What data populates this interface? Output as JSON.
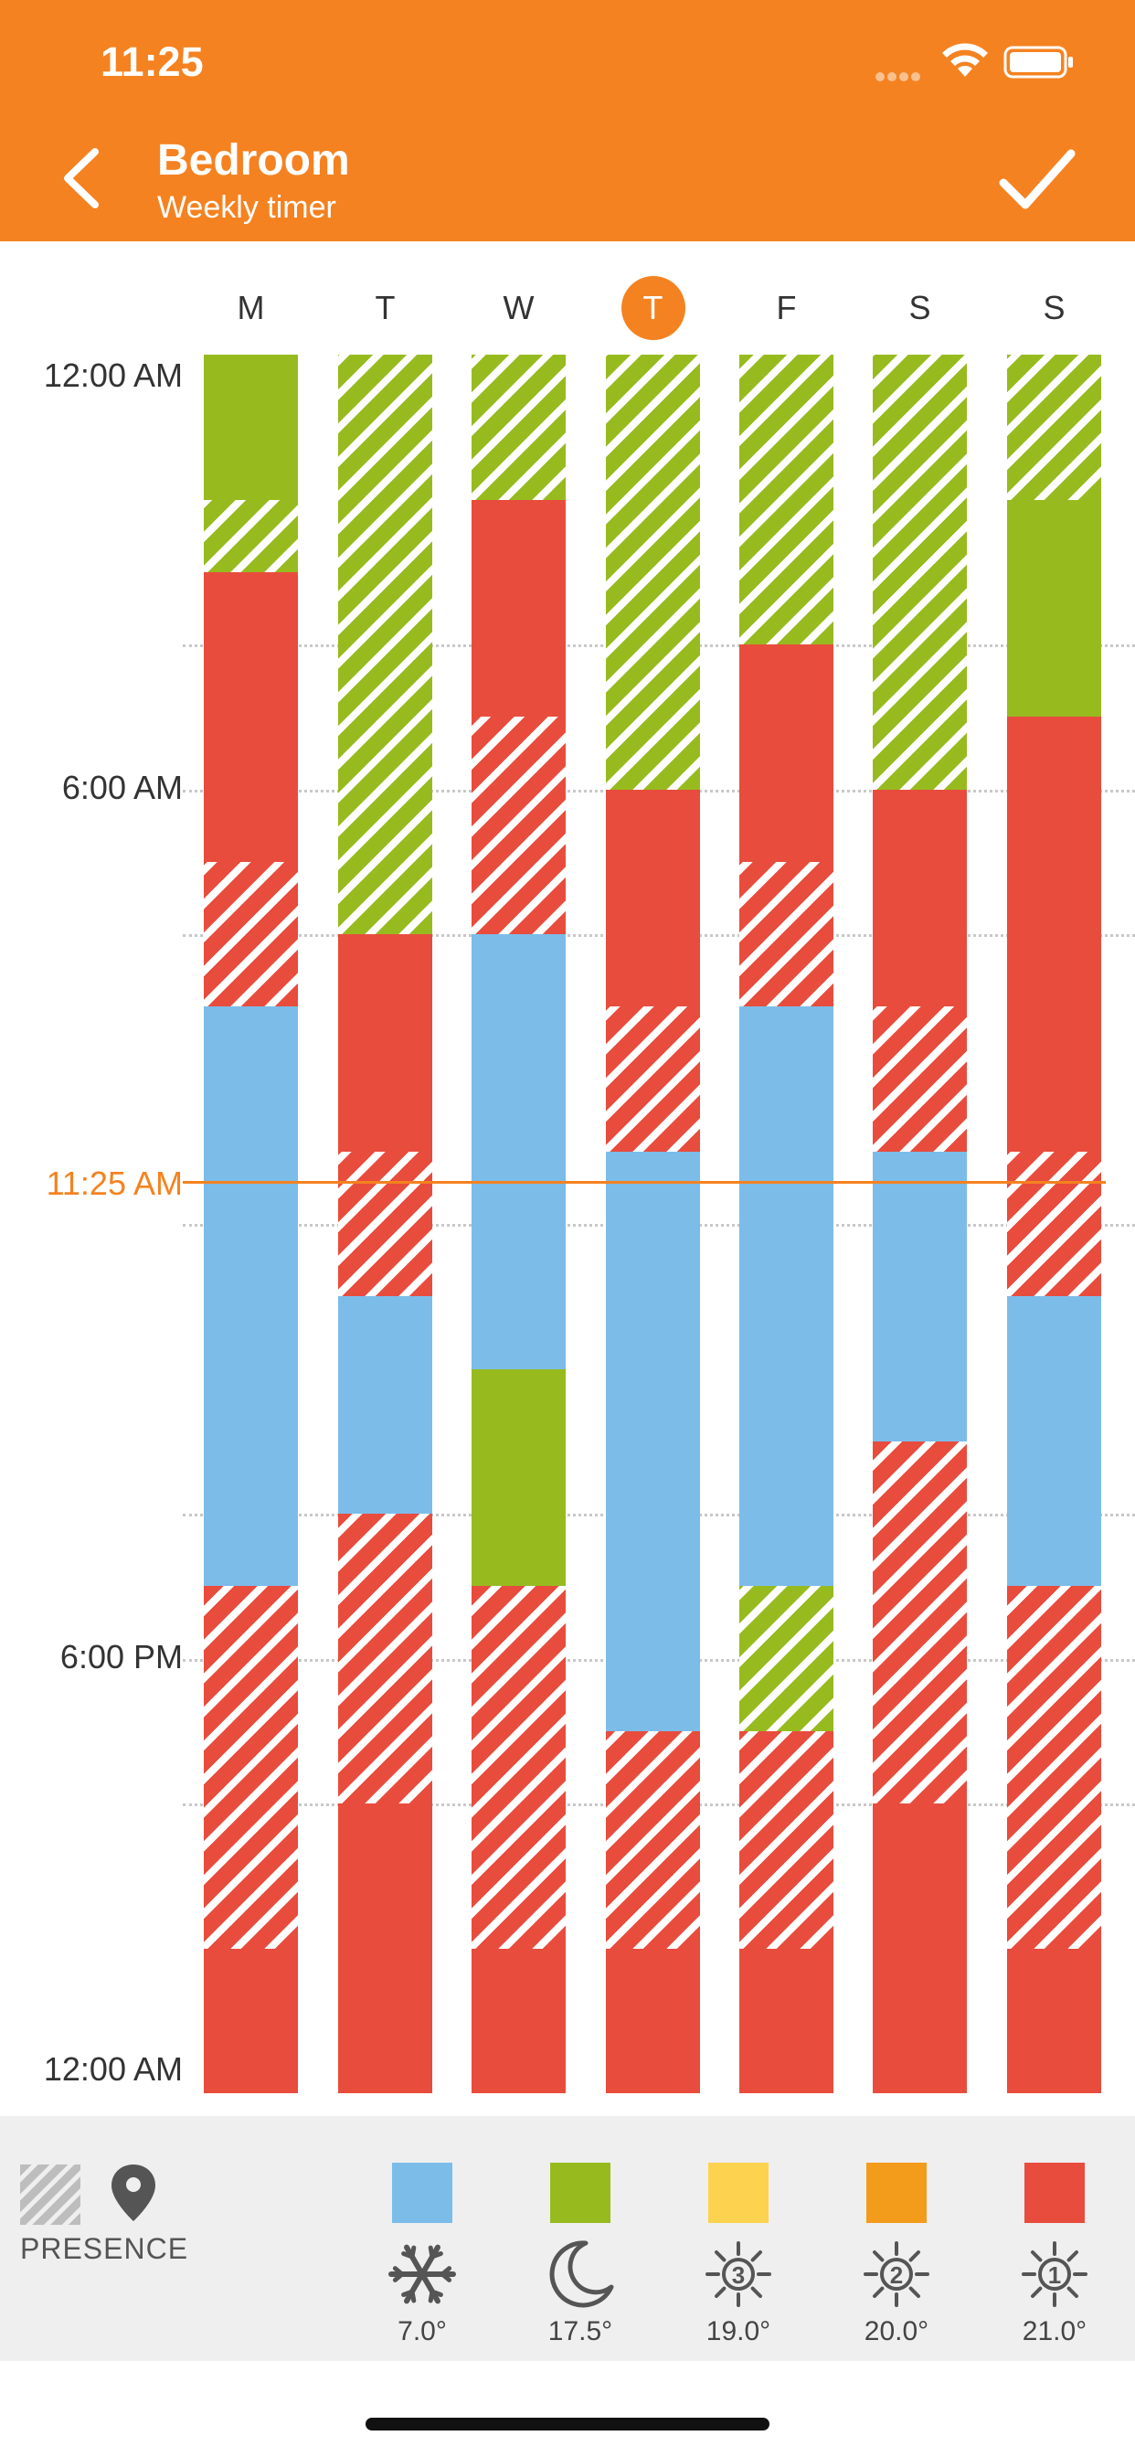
{
  "status_bar": {
    "time": "11:25"
  },
  "header": {
    "title": "Bedroom",
    "subtitle": "Weekly timer"
  },
  "days": [
    {
      "label": "M",
      "today": false
    },
    {
      "label": "T",
      "today": false
    },
    {
      "label": "W",
      "today": false
    },
    {
      "label": "T",
      "today": true
    },
    {
      "label": "F",
      "today": false
    },
    {
      "label": "S",
      "today": false
    },
    {
      "label": "S",
      "today": false
    }
  ],
  "time_labels": {
    "midnight_start": "12:00 AM",
    "six_am": "6:00 AM",
    "current": "11:25 AM",
    "six_pm": "6:00 PM",
    "midnight_end": "12:00 AM"
  },
  "current_time_hours": 11.4167,
  "schedule": [
    [
      {
        "start": 0,
        "end": 2,
        "mode": "green",
        "presence": false
      },
      {
        "start": 2,
        "end": 3,
        "mode": "green",
        "presence": true
      },
      {
        "start": 3,
        "end": 7,
        "mode": "red",
        "presence": false
      },
      {
        "start": 7,
        "end": 9,
        "mode": "red",
        "presence": true
      },
      {
        "start": 9,
        "end": 17,
        "mode": "blue",
        "presence": false
      },
      {
        "start": 17,
        "end": 22,
        "mode": "red",
        "presence": true
      },
      {
        "start": 22,
        "end": 24,
        "mode": "red",
        "presence": false
      }
    ],
    [
      {
        "start": 0,
        "end": 8,
        "mode": "green",
        "presence": true
      },
      {
        "start": 8,
        "end": 11,
        "mode": "red",
        "presence": false
      },
      {
        "start": 11,
        "end": 13,
        "mode": "red",
        "presence": true
      },
      {
        "start": 13,
        "end": 16,
        "mode": "blue",
        "presence": false
      },
      {
        "start": 16,
        "end": 20,
        "mode": "red",
        "presence": true
      },
      {
        "start": 20,
        "end": 24,
        "mode": "red",
        "presence": false
      }
    ],
    [
      {
        "start": 0,
        "end": 2,
        "mode": "green",
        "presence": true
      },
      {
        "start": 2,
        "end": 5,
        "mode": "red",
        "presence": false
      },
      {
        "start": 5,
        "end": 8,
        "mode": "red",
        "presence": true
      },
      {
        "start": 8,
        "end": 14,
        "mode": "blue",
        "presence": false
      },
      {
        "start": 14,
        "end": 17,
        "mode": "green",
        "presence": false
      },
      {
        "start": 17,
        "end": 22,
        "mode": "red",
        "presence": true
      },
      {
        "start": 22,
        "end": 24,
        "mode": "red",
        "presence": false
      }
    ],
    [
      {
        "start": 0,
        "end": 6,
        "mode": "green",
        "presence": true
      },
      {
        "start": 6,
        "end": 9,
        "mode": "red",
        "presence": false
      },
      {
        "start": 9,
        "end": 11,
        "mode": "red",
        "presence": true
      },
      {
        "start": 11,
        "end": 19,
        "mode": "blue",
        "presence": false
      },
      {
        "start": 19,
        "end": 22,
        "mode": "red",
        "presence": true
      },
      {
        "start": 22,
        "end": 24,
        "mode": "red",
        "presence": false
      }
    ],
    [
      {
        "start": 0,
        "end": 4,
        "mode": "green",
        "presence": true
      },
      {
        "start": 4,
        "end": 7,
        "mode": "red",
        "presence": false
      },
      {
        "start": 7,
        "end": 9,
        "mode": "red",
        "presence": true
      },
      {
        "start": 9,
        "end": 17,
        "mode": "blue",
        "presence": false
      },
      {
        "start": 17,
        "end": 19,
        "mode": "green",
        "presence": true
      },
      {
        "start": 19,
        "end": 22,
        "mode": "red",
        "presence": true
      },
      {
        "start": 22,
        "end": 24,
        "mode": "red",
        "presence": false
      }
    ],
    [
      {
        "start": 0,
        "end": 6,
        "mode": "green",
        "presence": true
      },
      {
        "start": 6,
        "end": 9,
        "mode": "red",
        "presence": false
      },
      {
        "start": 9,
        "end": 11,
        "mode": "red",
        "presence": true
      },
      {
        "start": 11,
        "end": 15,
        "mode": "blue",
        "presence": false
      },
      {
        "start": 15,
        "end": 20,
        "mode": "red",
        "presence": true
      },
      {
        "start": 20,
        "end": 24,
        "mode": "red",
        "presence": false
      }
    ],
    [
      {
        "start": 0,
        "end": 2,
        "mode": "green",
        "presence": true
      },
      {
        "start": 2,
        "end": 5,
        "mode": "green",
        "presence": false
      },
      {
        "start": 5,
        "end": 11,
        "mode": "red",
        "presence": false
      },
      {
        "start": 11,
        "end": 13,
        "mode": "red",
        "presence": true
      },
      {
        "start": 13,
        "end": 17,
        "mode": "blue",
        "presence": false
      },
      {
        "start": 17,
        "end": 22,
        "mode": "red",
        "presence": true
      },
      {
        "start": 22,
        "end": 24,
        "mode": "red",
        "presence": false
      }
    ]
  ],
  "legend": {
    "presence_label": "PRESENCE",
    "modes": [
      {
        "name": "snowflake-icon",
        "color": "#7CBCE9",
        "temp": "7.0°"
      },
      {
        "name": "moon-icon",
        "color": "#97BB1F",
        "temp": "17.5°"
      },
      {
        "name": "sun-3-icon",
        "color": "#FDD24F",
        "temp": "19.0°",
        "number": "3"
      },
      {
        "name": "sun-2-icon",
        "color": "#F39B1A",
        "temp": "20.0°",
        "number": "2"
      },
      {
        "name": "sun-1-icon",
        "color": "#E84C3D",
        "temp": "21.0°",
        "number": "1"
      }
    ]
  },
  "colors": {
    "accent": "#F58220",
    "blue": "#7CBCE9",
    "green": "#97BB1F",
    "red": "#E84C3D"
  }
}
